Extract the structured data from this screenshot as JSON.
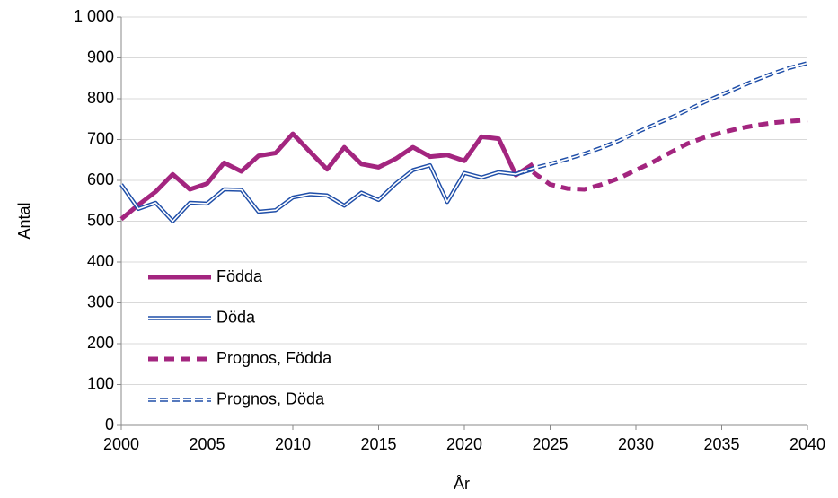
{
  "chart_data": {
    "type": "line",
    "x_label": "År",
    "y_label": "Antal",
    "x": [
      2000,
      2001,
      2002,
      2003,
      2004,
      2005,
      2006,
      2007,
      2008,
      2009,
      2010,
      2011,
      2012,
      2013,
      2014,
      2015,
      2016,
      2017,
      2018,
      2019,
      2020,
      2021,
      2022,
      2023,
      2024,
      2025,
      2026,
      2027,
      2028,
      2029,
      2030,
      2031,
      2032,
      2033,
      2034,
      2035,
      2036,
      2037,
      2038,
      2039,
      2040
    ],
    "series": [
      {
        "name": "Födda",
        "color": "#a3257f",
        "style": "solid",
        "values": [
          505,
          540,
          572,
          615,
          578,
          592,
          643,
          622,
          660,
          667,
          714,
          670,
          627,
          681,
          640,
          632,
          653,
          681,
          658,
          662,
          648,
          707,
          702,
          613,
          640,
          null,
          null,
          null,
          null,
          null,
          null,
          null,
          null,
          null,
          null,
          null,
          null,
          null,
          null,
          null,
          null
        ]
      },
      {
        "name": "Döda",
        "color": "#1f4ea8",
        "style": "double",
        "values": [
          590,
          530,
          545,
          500,
          545,
          543,
          578,
          577,
          523,
          527,
          558,
          566,
          563,
          538,
          570,
          552,
          592,
          625,
          637,
          547,
          618,
          607,
          620,
          615,
          627,
          null,
          null,
          null,
          null,
          null,
          null,
          null,
          null,
          null,
          null,
          null,
          null,
          null,
          null,
          null,
          null
        ]
      },
      {
        "name": "Prognos, Födda",
        "color": "#a3257f",
        "style": "dashed",
        "values": [
          null,
          null,
          null,
          null,
          null,
          null,
          null,
          null,
          null,
          null,
          null,
          null,
          null,
          null,
          null,
          null,
          null,
          null,
          null,
          null,
          null,
          null,
          null,
          null,
          620,
          590,
          580,
          578,
          590,
          605,
          625,
          645,
          668,
          690,
          705,
          717,
          727,
          735,
          741,
          745,
          748
        ]
      },
      {
        "name": "Prognos, Döda",
        "color": "#1f4ea8",
        "style": "double-dashed",
        "values": [
          null,
          null,
          null,
          null,
          null,
          null,
          null,
          null,
          null,
          null,
          null,
          null,
          null,
          null,
          null,
          null,
          null,
          null,
          null,
          null,
          null,
          null,
          null,
          615,
          630,
          640,
          652,
          665,
          680,
          697,
          717,
          735,
          753,
          772,
          792,
          810,
          828,
          846,
          862,
          876,
          887
        ]
      }
    ],
    "xlim": [
      2000,
      2040
    ],
    "xticks": [
      2000,
      2005,
      2010,
      2015,
      2020,
      2025,
      2030,
      2035,
      2040
    ],
    "ylim": [
      0,
      1000
    ],
    "yticks": [
      0,
      100,
      200,
      300,
      400,
      500,
      600,
      700,
      800,
      900,
      {
        "value": 1000,
        "label": "1 000"
      }
    ],
    "grid": true,
    "legend": "lower left"
  }
}
